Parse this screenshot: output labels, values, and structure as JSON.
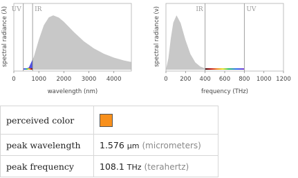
{
  "chart_data": [
    {
      "type": "area",
      "y_label": "spectral radiance (λ)",
      "x_label": "wavelength (nm)",
      "color": "#c8c8c8",
      "x": [
        200,
        400,
        600,
        800,
        1000,
        1200,
        1400,
        1576,
        1800,
        2000,
        2400,
        2800,
        3200,
        3600,
        4000,
        4400,
        4700
      ],
      "values": [
        0,
        0.0004,
        0.039,
        0.239,
        0.553,
        0.82,
        0.965,
        1,
        0.96,
        0.883,
        0.694,
        0.523,
        0.393,
        0.294,
        0.223,
        0.17,
        0.141
      ],
      "xlim": [
        0,
        4700
      ],
      "ylim": [
        0,
        1.22
      ],
      "xticks": [
        0,
        1000,
        2000,
        3000,
        4000
      ],
      "annotations": [
        {
          "x": 380,
          "label": "UV",
          "side": "left"
        },
        {
          "x": 750,
          "label": "IR",
          "side": "right"
        }
      ]
    },
    {
      "type": "area",
      "y_label": "spectral radiance (ν)",
      "x_label": "frequency (THz)",
      "color": "#c8c8c8",
      "x": [
        0,
        25,
        50,
        75,
        108.1,
        150,
        200,
        250,
        300,
        350,
        400,
        500,
        600,
        800,
        1200
      ],
      "values": [
        0,
        0.212,
        0.582,
        0.867,
        1,
        0.859,
        0.544,
        0.287,
        0.134,
        0.058,
        0.0234,
        0.0034,
        0.0004,
        0,
        0
      ],
      "xlim": [
        0,
        1200
      ],
      "ylim": [
        0,
        1.22
      ],
      "xticks": [
        0,
        200,
        400,
        600,
        800,
        1000,
        1200
      ],
      "annotations": [
        {
          "x": 400,
          "label": "IR",
          "side": "left"
        },
        {
          "x": 800,
          "label": "UV",
          "side": "right"
        }
      ]
    }
  ],
  "table": {
    "rows": [
      {
        "label": "perceived color",
        "swatch": "#f8901c"
      },
      {
        "label": "peak wavelength",
        "value": "1.576",
        "unit": "µm",
        "note": "(micrometers)"
      },
      {
        "label": "peak frequency",
        "value": "108.1",
        "unit": "THz",
        "note": "(terahertz)"
      }
    ]
  }
}
